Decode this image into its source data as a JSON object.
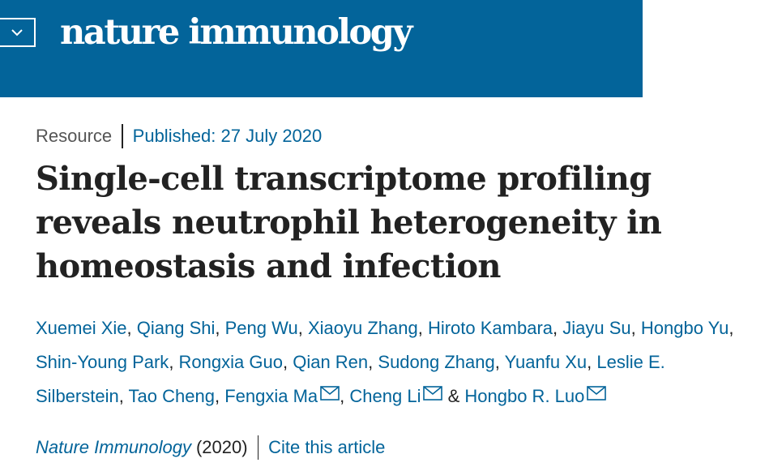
{
  "header": {
    "brand": "nature immunology",
    "menu_icon": "chevron-down-icon",
    "background": "#03649a"
  },
  "article": {
    "type": "Resource",
    "published": "Published: 27 July 2020",
    "title": "Single-cell transcriptome profiling reveals neutrophil heterogeneity in homeostasis and infection",
    "authors": [
      {
        "name": "Xuemei Xie",
        "sep": ", "
      },
      {
        "name": "Qiang Shi",
        "sep": ", "
      },
      {
        "name": "Peng Wu",
        "sep": ", "
      },
      {
        "name": "Xiaoyu Zhang",
        "sep": ", "
      },
      {
        "name": "Hiroto Kambara",
        "sep": ", "
      },
      {
        "name": "Jiayu Su",
        "sep": ", "
      },
      {
        "name": "Hongbo Yu",
        "sep": ", "
      },
      {
        "name": "Shin-Young Park",
        "sep": ", "
      },
      {
        "name": "Rongxia Guo",
        "sep": ", "
      },
      {
        "name": "Qian Ren",
        "sep": ", "
      },
      {
        "name": "Sudong Zhang",
        "sep": ", "
      },
      {
        "name": "Yuanfu Xu",
        "sep": ", "
      },
      {
        "name": "Leslie E. Silberstein",
        "sep": ", "
      },
      {
        "name": "Tao Cheng",
        "sep": ", "
      },
      {
        "name": "Fengxia Ma",
        "sep": ", ",
        "mail": true
      },
      {
        "name": "Cheng Li",
        "sep": " & ",
        "mail": true
      },
      {
        "name": "Hongbo R. Luo",
        "sep": "",
        "mail": true
      }
    ],
    "journal": "Nature Immunology",
    "year": "(2020)",
    "cite_label": "Cite this article",
    "accent_color": "#03649a"
  }
}
